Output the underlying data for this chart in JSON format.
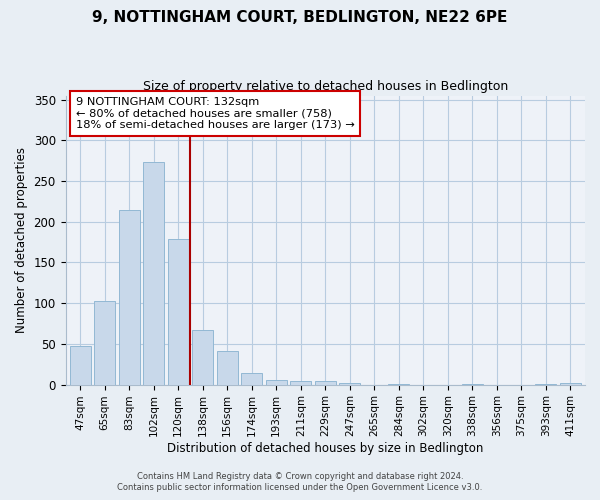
{
  "title": "9, NOTTINGHAM COURT, BEDLINGTON, NE22 6PE",
  "subtitle": "Size of property relative to detached houses in Bedlington",
  "xlabel": "Distribution of detached houses by size in Bedlington",
  "ylabel": "Number of detached properties",
  "bar_color": "#c8d8ea",
  "bar_edge_color": "#92b8d4",
  "categories": [
    "47sqm",
    "65sqm",
    "83sqm",
    "102sqm",
    "120sqm",
    "138sqm",
    "156sqm",
    "174sqm",
    "193sqm",
    "211sqm",
    "229sqm",
    "247sqm",
    "265sqm",
    "284sqm",
    "302sqm",
    "320sqm",
    "338sqm",
    "356sqm",
    "375sqm",
    "393sqm",
    "411sqm"
  ],
  "values": [
    48,
    103,
    215,
    273,
    179,
    67,
    41,
    14,
    6,
    5,
    4,
    2,
    0,
    1,
    0,
    0,
    1,
    0,
    0,
    1,
    2
  ],
  "vline_x": 4.5,
  "vline_color": "#aa0000",
  "annotation_title": "9 NOTTINGHAM COURT: 132sqm",
  "annotation_line1": "← 80% of detached houses are smaller (758)",
  "annotation_line2": "18% of semi-detached houses are larger (173) →",
  "ylim": [
    0,
    355
  ],
  "yticks": [
    0,
    50,
    100,
    150,
    200,
    250,
    300,
    350
  ],
  "footer1": "Contains HM Land Registry data © Crown copyright and database right 2024.",
  "footer2": "Contains public sector information licensed under the Open Government Licence v3.0.",
  "bg_color": "#e8eef4",
  "plot_bg_color": "#eef2f8"
}
